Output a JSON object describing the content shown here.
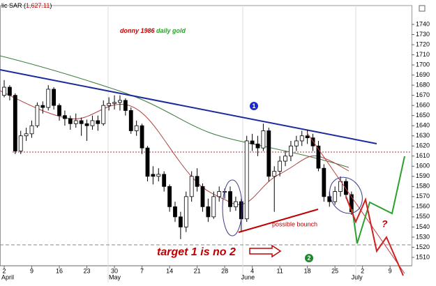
{
  "chart_data": {
    "type": "candlestick",
    "indicator_prefix": "lic SAR (",
    "indicator_value": "1,627.11",
    "indicator_suffix": ")",
    "title_red": "donny 1986",
    "title_green": "daily gold",
    "annotations": {
      "bounce": "possible bounch",
      "target": "target 1 is no 2",
      "question": "?",
      "marker1": "1",
      "marker2": "2"
    },
    "ohlc": [
      [
        1670,
        1685,
        1668,
        1678
      ],
      [
        1678,
        1680,
        1665,
        1670
      ],
      [
        1670,
        1672,
        1612,
        1615
      ],
      [
        1615,
        1635,
        1612,
        1630
      ],
      [
        1630,
        1638,
        1625,
        1632
      ],
      [
        1632,
        1645,
        1628,
        1640
      ],
      [
        1640,
        1663,
        1638,
        1660
      ],
      [
        1660,
        1664,
        1652,
        1658
      ],
      [
        1658,
        1680,
        1655,
        1676
      ],
      [
        1676,
        1678,
        1656,
        1660
      ],
      [
        1660,
        1662,
        1645,
        1650
      ],
      [
        1650,
        1655,
        1640,
        1647
      ],
      [
        1647,
        1650,
        1636,
        1642
      ],
      [
        1642,
        1652,
        1638,
        1645
      ],
      [
        1645,
        1648,
        1630,
        1642
      ],
      [
        1642,
        1646,
        1625,
        1640
      ],
      [
        1640,
        1650,
        1636,
        1645
      ],
      [
        1645,
        1650,
        1635,
        1642
      ],
      [
        1642,
        1665,
        1640,
        1660
      ],
      [
        1660,
        1668,
        1655,
        1662
      ],
      [
        1662,
        1670,
        1656,
        1663
      ],
      [
        1663,
        1670,
        1655,
        1665
      ],
      [
        1665,
        1667,
        1650,
        1655
      ],
      [
        1655,
        1658,
        1632,
        1635
      ],
      [
        1635,
        1645,
        1630,
        1640
      ],
      [
        1640,
        1642,
        1612,
        1618
      ],
      [
        1618,
        1620,
        1585,
        1590
      ],
      [
        1592,
        1600,
        1582,
        1590
      ],
      [
        1590,
        1598,
        1585,
        1592
      ],
      [
        1592,
        1595,
        1575,
        1580
      ],
      [
        1580,
        1582,
        1555,
        1560
      ],
      [
        1560,
        1565,
        1545,
        1550
      ],
      [
        1550,
        1555,
        1528,
        1540
      ],
      [
        1540,
        1575,
        1535,
        1570
      ],
      [
        1570,
        1595,
        1565,
        1590
      ],
      [
        1590,
        1598,
        1575,
        1580
      ],
      [
        1580,
        1583,
        1555,
        1560
      ],
      [
        1560,
        1568,
        1545,
        1550
      ],
      [
        1550,
        1575,
        1548,
        1570
      ],
      [
        1570,
        1580,
        1565,
        1575
      ],
      [
        1575,
        1578,
        1568,
        1575
      ],
      [
        1575,
        1580,
        1555,
        1560
      ],
      [
        1560,
        1570,
        1556,
        1565
      ],
      [
        1565,
        1568,
        1535,
        1548
      ],
      [
        1548,
        1630,
        1545,
        1625
      ],
      [
        1625,
        1632,
        1615,
        1622
      ],
      [
        1622,
        1630,
        1610,
        1618
      ],
      [
        1618,
        1642,
        1615,
        1635
      ],
      [
        1635,
        1638,
        1585,
        1590
      ],
      [
        1590,
        1600,
        1555,
        1595
      ],
      [
        1595,
        1610,
        1590,
        1605
      ],
      [
        1605,
        1615,
        1600,
        1610
      ],
      [
        1610,
        1625,
        1605,
        1620
      ],
      [
        1620,
        1630,
        1615,
        1625
      ],
      [
        1625,
        1635,
        1620,
        1630
      ],
      [
        1630,
        1636,
        1622,
        1628
      ],
      [
        1628,
        1632,
        1615,
        1620
      ],
      [
        1620,
        1625,
        1595,
        1598
      ],
      [
        1598,
        1602,
        1565,
        1570
      ],
      [
        1570,
        1575,
        1560,
        1565
      ],
      [
        1565,
        1580,
        1562,
        1575
      ],
      [
        1575,
        1590,
        1570,
        1585
      ],
      [
        1585,
        1588,
        1568,
        1572
      ],
      [
        1572,
        1575,
        1552,
        1555
      ]
    ],
    "xlim": [
      -0.76,
      73.9
    ],
    "xticks": [
      {
        "value": 0,
        "label": "2"
      },
      {
        "value": 5,
        "label": "9"
      },
      {
        "value": 10,
        "label": "16"
      },
      {
        "value": 15,
        "label": "23"
      },
      {
        "value": 20,
        "label": "30"
      },
      {
        "value": 25,
        "label": "7"
      },
      {
        "value": 30,
        "label": "14"
      },
      {
        "value": 35,
        "label": "21"
      },
      {
        "value": 40,
        "label": "28"
      },
      {
        "value": 45,
        "label": "4"
      },
      {
        "value": 50,
        "label": "11"
      },
      {
        "value": 55,
        "label": "18"
      },
      {
        "value": 60,
        "label": "25"
      },
      {
        "value": 65,
        "label": "2"
      },
      {
        "value": 70,
        "label": "9"
      }
    ],
    "months": [
      {
        "value": 0,
        "label": "April"
      },
      {
        "value": 21,
        "label": "May"
      },
      {
        "value": 45,
        "label": "June"
      },
      {
        "value": 65,
        "label": "July"
      }
    ],
    "ylim": [
      1501.7,
      1758.6
    ],
    "yticks": [
      1510,
      1520,
      1530,
      1540,
      1550,
      1560,
      1570,
      1580,
      1590,
      1600,
      1610,
      1620,
      1630,
      1640,
      1650,
      1660,
      1670,
      1680,
      1690,
      1700,
      1710,
      1720,
      1730,
      1740
    ]
  }
}
